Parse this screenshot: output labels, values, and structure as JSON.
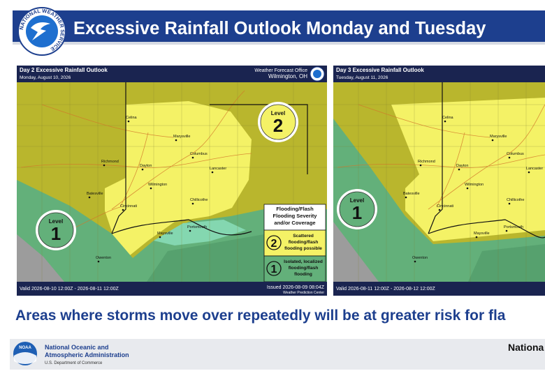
{
  "header": {
    "title": "Excessive Rainfall Outlook Monday and Tuesday",
    "logo_text": "NATIONAL WEATHER SERVICE"
  },
  "maps": [
    {
      "title": "Day 2 Excessive Rainfall Outlook",
      "date": "Monday, August 10, 2026",
      "office": "Weather Forecast Office",
      "office_location": "Wilmington, OH",
      "cities": [
        "Celina",
        "Marysville",
        "Columbus",
        "Richmond",
        "Dayton",
        "Lancaster",
        "Wilmington",
        "Chillicothe",
        "Batesville",
        "Cincinnati",
        "Portsmouth",
        "Maysville",
        "Owenton"
      ],
      "badges": [
        {
          "label": "Level",
          "number": "2"
        },
        {
          "label": "Level",
          "number": "1"
        }
      ],
      "legend": {
        "title": [
          "Flooding/Flash",
          "Flooding Severity",
          "and/or Coverage"
        ],
        "items": [
          {
            "number": "2",
            "text": [
              "Scattered",
              "flooding/flash",
              "flooding possible"
            ]
          },
          {
            "number": "1",
            "text": [
              "Isolated, localized",
              "flooding/flash",
              "flooding"
            ]
          }
        ]
      },
      "valid": "Valid 2026-08-10 12:00Z - 2026-08-11 12:00Z",
      "issued": "Issued 2026-08-09 08:04Z",
      "center": "Weather Prediction Center"
    },
    {
      "title": "Day 3 Excessive Rainfall Outlook",
      "date": "Tuesday, August 11, 2026",
      "cities": [
        "Celina",
        "Marysville",
        "Columbus",
        "Richmond",
        "Dayton",
        "Lancaster",
        "Wilmington",
        "Chillicothe",
        "Batesville",
        "Cincinnati",
        "Portsmouth",
        "Maysville",
        "Owenton"
      ],
      "badges": [
        {
          "label": "Level",
          "number": "1"
        }
      ],
      "valid": "Valid 2026-08-11 12:00Z - 2026-08-12 12:00Z"
    }
  ],
  "message": "Areas where storms move over repeatedly will be at greater risk for fla",
  "footer": {
    "agency": [
      "National Oceanic and",
      "Atmospheric Administration"
    ],
    "department": "U.S. Department of Commerce",
    "logo_text": "NOAA",
    "right": "Nationa"
  }
}
